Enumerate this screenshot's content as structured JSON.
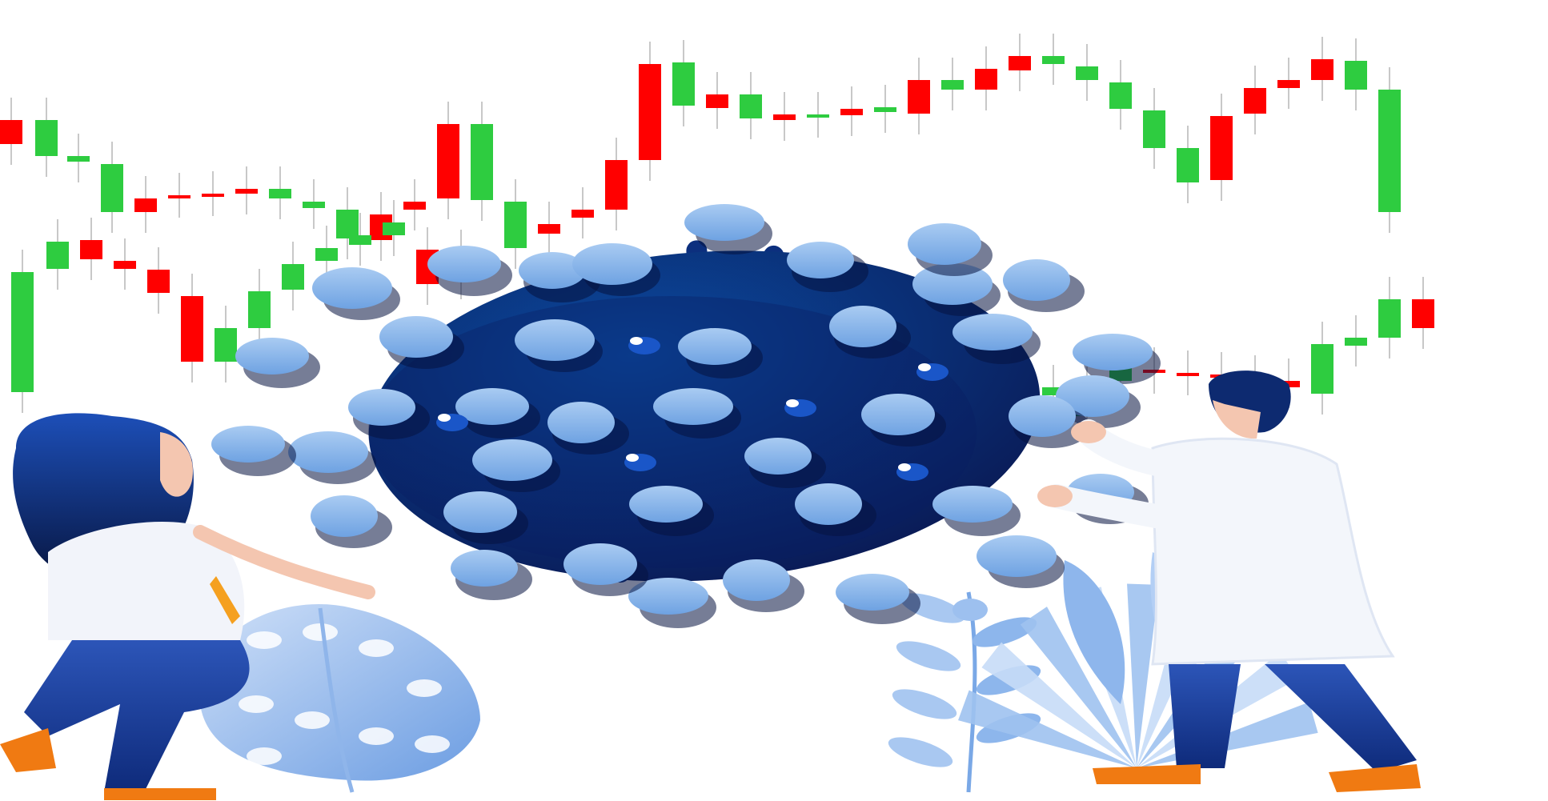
{
  "illustration": {
    "colors": {
      "background": "#ffffff",
      "candle_up": "#2ecc40",
      "candle_down": "#ff0000",
      "wick": "#c8c8c8",
      "virus_dark": "#0a1a55",
      "virus_mid": "#0b4aa0",
      "virus_blob": "#8cb6ea",
      "leaf_light": "#b8d2f5",
      "leaf_mid": "#7aa8e6",
      "coat": "#f3f6fb",
      "trousers": "#1c3f9e",
      "shoes": "#f07a12",
      "hair": "#0d2a70",
      "skin": "#f4c6b0"
    },
    "elements": [
      "candlestick-background",
      "virus",
      "woman-character",
      "scientist-character",
      "monstera-leaf",
      "fern-plant",
      "palm-leaves"
    ]
  }
}
